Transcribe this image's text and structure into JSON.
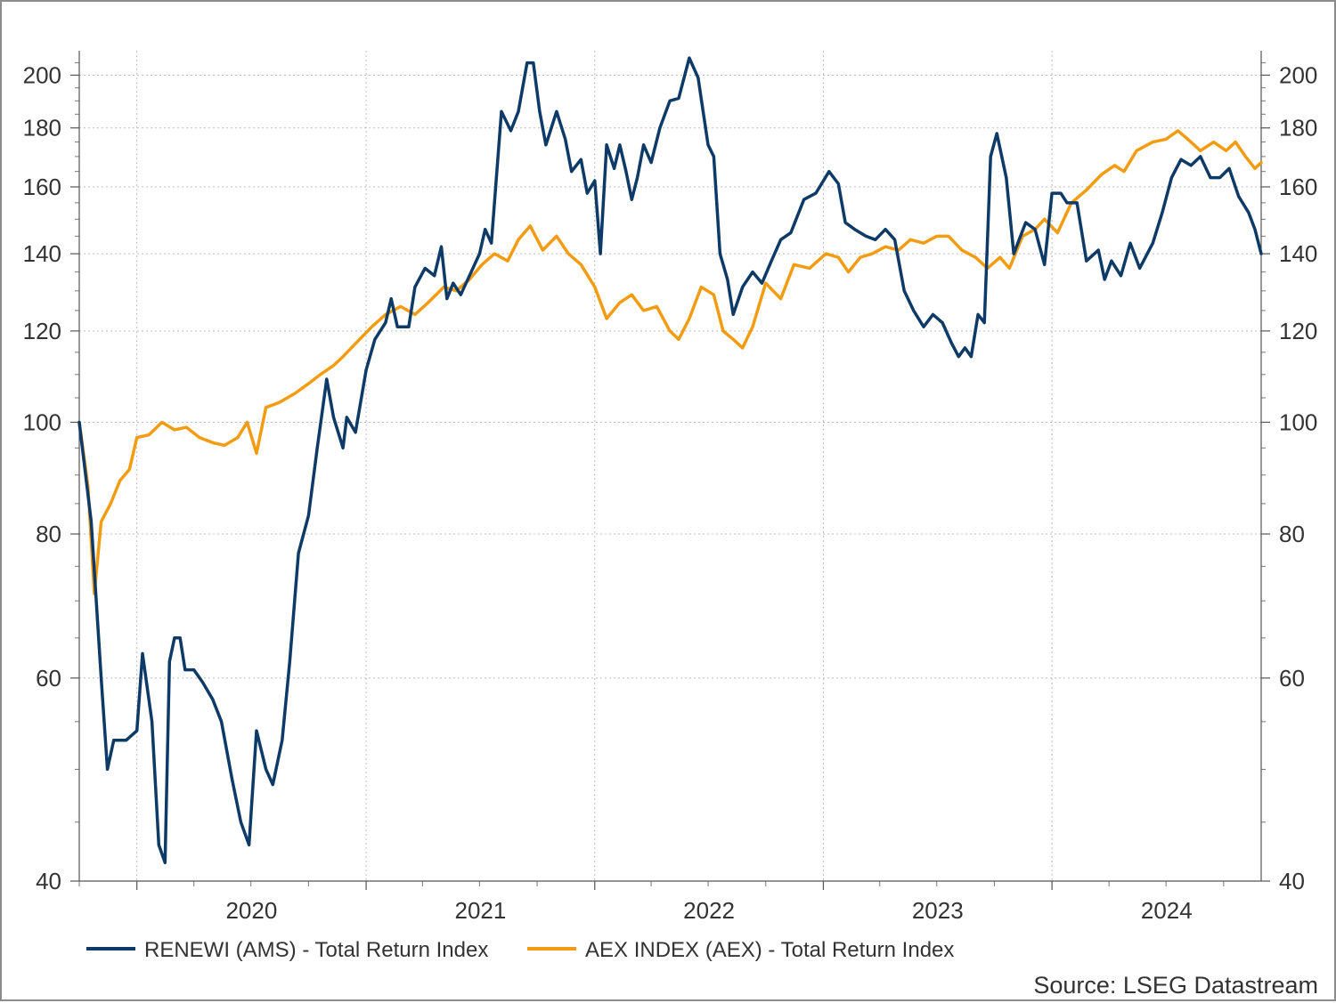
{
  "chart_data": {
    "type": "line",
    "title": "",
    "xlabel": "",
    "ylabel": "",
    "x_scale": "time",
    "y_scale": "log",
    "ylim": [
      40,
      210
    ],
    "xlim": [
      "2019-10-01",
      "2024-11-30"
    ],
    "y_ticks": [
      40,
      60,
      80,
      100,
      120,
      140,
      160,
      180,
      200
    ],
    "y_tick_labels": [
      "40",
      "60",
      "80",
      "100",
      "120",
      "140",
      "160",
      "180",
      "200"
    ],
    "x_tick_labels": [
      "2020",
      "2021",
      "2022",
      "2023",
      "2024"
    ],
    "grid": true,
    "legend_position": "bottom-left",
    "source": "Source: LSEG Datastream",
    "colors": {
      "renewi": "#0d3a66",
      "aex": "#f39c12"
    },
    "series": [
      {
        "name": "RENEWI (AMS) - Total Return Index",
        "color": "#0d3a66",
        "points": [
          [
            "2019-10-01",
            100
          ],
          [
            "2019-10-20",
            82
          ],
          [
            "2019-11-05",
            60
          ],
          [
            "2019-11-15",
            50
          ],
          [
            "2019-11-25",
            53
          ],
          [
            "2019-12-15",
            53
          ],
          [
            "2020-01-01",
            54
          ],
          [
            "2020-01-10",
            63
          ],
          [
            "2020-01-25",
            55
          ],
          [
            "2020-02-05",
            43
          ],
          [
            "2020-02-15",
            41.5
          ],
          [
            "2020-02-22",
            62
          ],
          [
            "2020-03-01",
            65
          ],
          [
            "2020-03-10",
            65
          ],
          [
            "2020-03-18",
            61
          ],
          [
            "2020-04-01",
            61
          ],
          [
            "2020-04-15",
            59.5
          ],
          [
            "2020-05-01",
            57.5
          ],
          [
            "2020-05-15",
            55
          ],
          [
            "2020-06-01",
            49
          ],
          [
            "2020-06-15",
            45
          ],
          [
            "2020-06-28",
            43
          ],
          [
            "2020-07-10",
            54
          ],
          [
            "2020-07-25",
            50
          ],
          [
            "2020-08-05",
            48.5
          ],
          [
            "2020-08-20",
            53
          ],
          [
            "2020-09-01",
            62
          ],
          [
            "2020-09-15",
            77
          ],
          [
            "2020-10-01",
            83
          ],
          [
            "2020-10-15",
            95
          ],
          [
            "2020-10-30",
            109
          ],
          [
            "2020-11-10",
            101
          ],
          [
            "2020-11-25",
            95
          ],
          [
            "2020-12-01",
            101
          ],
          [
            "2020-12-15",
            98
          ],
          [
            "2021-01-01",
            111
          ],
          [
            "2021-01-15",
            118
          ],
          [
            "2021-02-01",
            122
          ],
          [
            "2021-02-10",
            128
          ],
          [
            "2021-02-20",
            121
          ],
          [
            "2021-03-10",
            121
          ],
          [
            "2021-03-20",
            131
          ],
          [
            "2021-04-05",
            136
          ],
          [
            "2021-04-20",
            134
          ],
          [
            "2021-05-01",
            142
          ],
          [
            "2021-05-10",
            128
          ],
          [
            "2021-05-20",
            132
          ],
          [
            "2021-06-01",
            129
          ],
          [
            "2021-06-15",
            134
          ],
          [
            "2021-07-01",
            140
          ],
          [
            "2021-07-10",
            147
          ],
          [
            "2021-07-20",
            143
          ],
          [
            "2021-08-05",
            186
          ],
          [
            "2021-08-20",
            179
          ],
          [
            "2021-09-01",
            186
          ],
          [
            "2021-09-15",
            205
          ],
          [
            "2021-09-25",
            205
          ],
          [
            "2021-10-05",
            186
          ],
          [
            "2021-10-15",
            174
          ],
          [
            "2021-11-01",
            186
          ],
          [
            "2021-11-15",
            176
          ],
          [
            "2021-11-25",
            165
          ],
          [
            "2021-12-10",
            169
          ],
          [
            "2021-12-20",
            158
          ],
          [
            "2022-01-01",
            162
          ],
          [
            "2022-01-10",
            140
          ],
          [
            "2022-01-20",
            174
          ],
          [
            "2022-02-01",
            166
          ],
          [
            "2022-02-10",
            174
          ],
          [
            "2022-02-20",
            165
          ],
          [
            "2022-03-01",
            156
          ],
          [
            "2022-03-10",
            163
          ],
          [
            "2022-03-20",
            174
          ],
          [
            "2022-04-01",
            168
          ],
          [
            "2022-04-15",
            180
          ],
          [
            "2022-05-01",
            190
          ],
          [
            "2022-05-15",
            191
          ],
          [
            "2022-06-01",
            207
          ],
          [
            "2022-06-15",
            199
          ],
          [
            "2022-07-01",
            174
          ],
          [
            "2022-07-10",
            170
          ],
          [
            "2022-07-20",
            140
          ],
          [
            "2022-08-01",
            133
          ],
          [
            "2022-08-10",
            124
          ],
          [
            "2022-08-25",
            131
          ],
          [
            "2022-09-10",
            135
          ],
          [
            "2022-09-25",
            132
          ],
          [
            "2022-10-10",
            138
          ],
          [
            "2022-10-25",
            144
          ],
          [
            "2022-11-10",
            146
          ],
          [
            "2022-12-01",
            156
          ],
          [
            "2022-12-20",
            158
          ],
          [
            "2023-01-10",
            165
          ],
          [
            "2023-01-25",
            161
          ],
          [
            "2023-02-05",
            149
          ],
          [
            "2023-02-20",
            147
          ],
          [
            "2023-03-10",
            145
          ],
          [
            "2023-03-25",
            144
          ],
          [
            "2023-04-10",
            147
          ],
          [
            "2023-04-25",
            144
          ],
          [
            "2023-05-10",
            130
          ],
          [
            "2023-05-25",
            125
          ],
          [
            "2023-06-10",
            121
          ],
          [
            "2023-06-25",
            124
          ],
          [
            "2023-07-10",
            122
          ],
          [
            "2023-07-25",
            117
          ],
          [
            "2023-08-05",
            114
          ],
          [
            "2023-08-15",
            116
          ],
          [
            "2023-08-25",
            114
          ],
          [
            "2023-09-05",
            124
          ],
          [
            "2023-09-15",
            122
          ],
          [
            "2023-09-25",
            170
          ],
          [
            "2023-10-05",
            178
          ],
          [
            "2023-10-20",
            163
          ],
          [
            "2023-11-01",
            140
          ],
          [
            "2023-11-20",
            149
          ],
          [
            "2023-12-05",
            147
          ],
          [
            "2023-12-20",
            137
          ],
          [
            "2024-01-01",
            158
          ],
          [
            "2024-01-15",
            158
          ],
          [
            "2024-01-25",
            155
          ],
          [
            "2024-02-10",
            155
          ],
          [
            "2024-02-25",
            138
          ],
          [
            "2024-03-15",
            141
          ],
          [
            "2024-03-25",
            133
          ],
          [
            "2024-04-05",
            138
          ],
          [
            "2024-04-20",
            134
          ],
          [
            "2024-05-05",
            143
          ],
          [
            "2024-05-20",
            136
          ],
          [
            "2024-06-10",
            143
          ],
          [
            "2024-06-25",
            152
          ],
          [
            "2024-07-10",
            163
          ],
          [
            "2024-07-25",
            169
          ],
          [
            "2024-08-10",
            167
          ],
          [
            "2024-08-25",
            170
          ],
          [
            "2024-09-10",
            163
          ],
          [
            "2024-09-25",
            163
          ],
          [
            "2024-10-10",
            166
          ],
          [
            "2024-10-25",
            157
          ],
          [
            "2024-11-10",
            152
          ],
          [
            "2024-11-20",
            147
          ],
          [
            "2024-11-30",
            140
          ]
        ]
      },
      {
        "name": "AEX INDEX (AEX) - Total Return Index",
        "color": "#f39c12",
        "points": [
          [
            "2019-10-01",
            100
          ],
          [
            "2019-10-15",
            88
          ],
          [
            "2019-10-25",
            71
          ],
          [
            "2019-11-05",
            82
          ],
          [
            "2019-11-20",
            85
          ],
          [
            "2019-12-05",
            89
          ],
          [
            "2019-12-20",
            91
          ],
          [
            "2020-01-01",
            97
          ],
          [
            "2020-01-20",
            97.5
          ],
          [
            "2020-02-10",
            100
          ],
          [
            "2020-03-01",
            98.5
          ],
          [
            "2020-03-20",
            99
          ],
          [
            "2020-04-10",
            97
          ],
          [
            "2020-05-01",
            96
          ],
          [
            "2020-05-20",
            95.5
          ],
          [
            "2020-06-10",
            97
          ],
          [
            "2020-06-25",
            100
          ],
          [
            "2020-07-10",
            94
          ],
          [
            "2020-07-25",
            103
          ],
          [
            "2020-08-15",
            104
          ],
          [
            "2020-09-10",
            106
          ],
          [
            "2020-10-01",
            108
          ],
          [
            "2020-10-20",
            110
          ],
          [
            "2020-11-10",
            112
          ],
          [
            "2020-11-25",
            114
          ],
          [
            "2020-12-15",
            117
          ],
          [
            "2021-01-10",
            121
          ],
          [
            "2021-02-01",
            124
          ],
          [
            "2021-02-25",
            126
          ],
          [
            "2021-03-20",
            124
          ],
          [
            "2021-04-10",
            127
          ],
          [
            "2021-05-05",
            131
          ],
          [
            "2021-05-25",
            130
          ],
          [
            "2021-06-15",
            133
          ],
          [
            "2021-07-05",
            137
          ],
          [
            "2021-07-25",
            140
          ],
          [
            "2021-08-15",
            138
          ],
          [
            "2021-09-01",
            144
          ],
          [
            "2021-09-20",
            148
          ],
          [
            "2021-10-10",
            141
          ],
          [
            "2021-11-01",
            145
          ],
          [
            "2021-11-20",
            140
          ],
          [
            "2021-12-10",
            137
          ],
          [
            "2022-01-01",
            131
          ],
          [
            "2022-01-20",
            123
          ],
          [
            "2022-02-10",
            127
          ],
          [
            "2022-03-01",
            129
          ],
          [
            "2022-03-20",
            125
          ],
          [
            "2022-04-10",
            126
          ],
          [
            "2022-05-01",
            120
          ],
          [
            "2022-05-15",
            118
          ],
          [
            "2022-06-01",
            123
          ],
          [
            "2022-06-20",
            131
          ],
          [
            "2022-07-10",
            129
          ],
          [
            "2022-07-25",
            120
          ],
          [
            "2022-08-10",
            118
          ],
          [
            "2022-08-25",
            116
          ],
          [
            "2022-09-10",
            121
          ],
          [
            "2022-10-01",
            132
          ],
          [
            "2022-10-25",
            128
          ],
          [
            "2022-11-15",
            137
          ],
          [
            "2022-12-10",
            136
          ],
          [
            "2023-01-05",
            140
          ],
          [
            "2023-01-25",
            139
          ],
          [
            "2023-02-10",
            135
          ],
          [
            "2023-03-01",
            139
          ],
          [
            "2023-03-20",
            140
          ],
          [
            "2023-04-10",
            142
          ],
          [
            "2023-05-01",
            141
          ],
          [
            "2023-05-20",
            144
          ],
          [
            "2023-06-10",
            143
          ],
          [
            "2023-07-01",
            145
          ],
          [
            "2023-07-20",
            145
          ],
          [
            "2023-08-10",
            141
          ],
          [
            "2023-09-01",
            139
          ],
          [
            "2023-09-20",
            136
          ],
          [
            "2023-10-10",
            139
          ],
          [
            "2023-10-25",
            136
          ],
          [
            "2023-11-15",
            145
          ],
          [
            "2023-12-05",
            147
          ],
          [
            "2023-12-20",
            150
          ],
          [
            "2024-01-10",
            146
          ],
          [
            "2024-02-01",
            155
          ],
          [
            "2024-02-25",
            159
          ],
          [
            "2024-03-20",
            164
          ],
          [
            "2024-04-10",
            167
          ],
          [
            "2024-04-25",
            165
          ],
          [
            "2024-05-15",
            172
          ],
          [
            "2024-06-10",
            175
          ],
          [
            "2024-07-01",
            176
          ],
          [
            "2024-07-20",
            179
          ],
          [
            "2024-08-05",
            176
          ],
          [
            "2024-08-25",
            172
          ],
          [
            "2024-09-15",
            175
          ],
          [
            "2024-10-05",
            172
          ],
          [
            "2024-10-20",
            175
          ],
          [
            "2024-11-05",
            170
          ],
          [
            "2024-11-20",
            166
          ],
          [
            "2024-11-30",
            168
          ]
        ]
      }
    ]
  }
}
